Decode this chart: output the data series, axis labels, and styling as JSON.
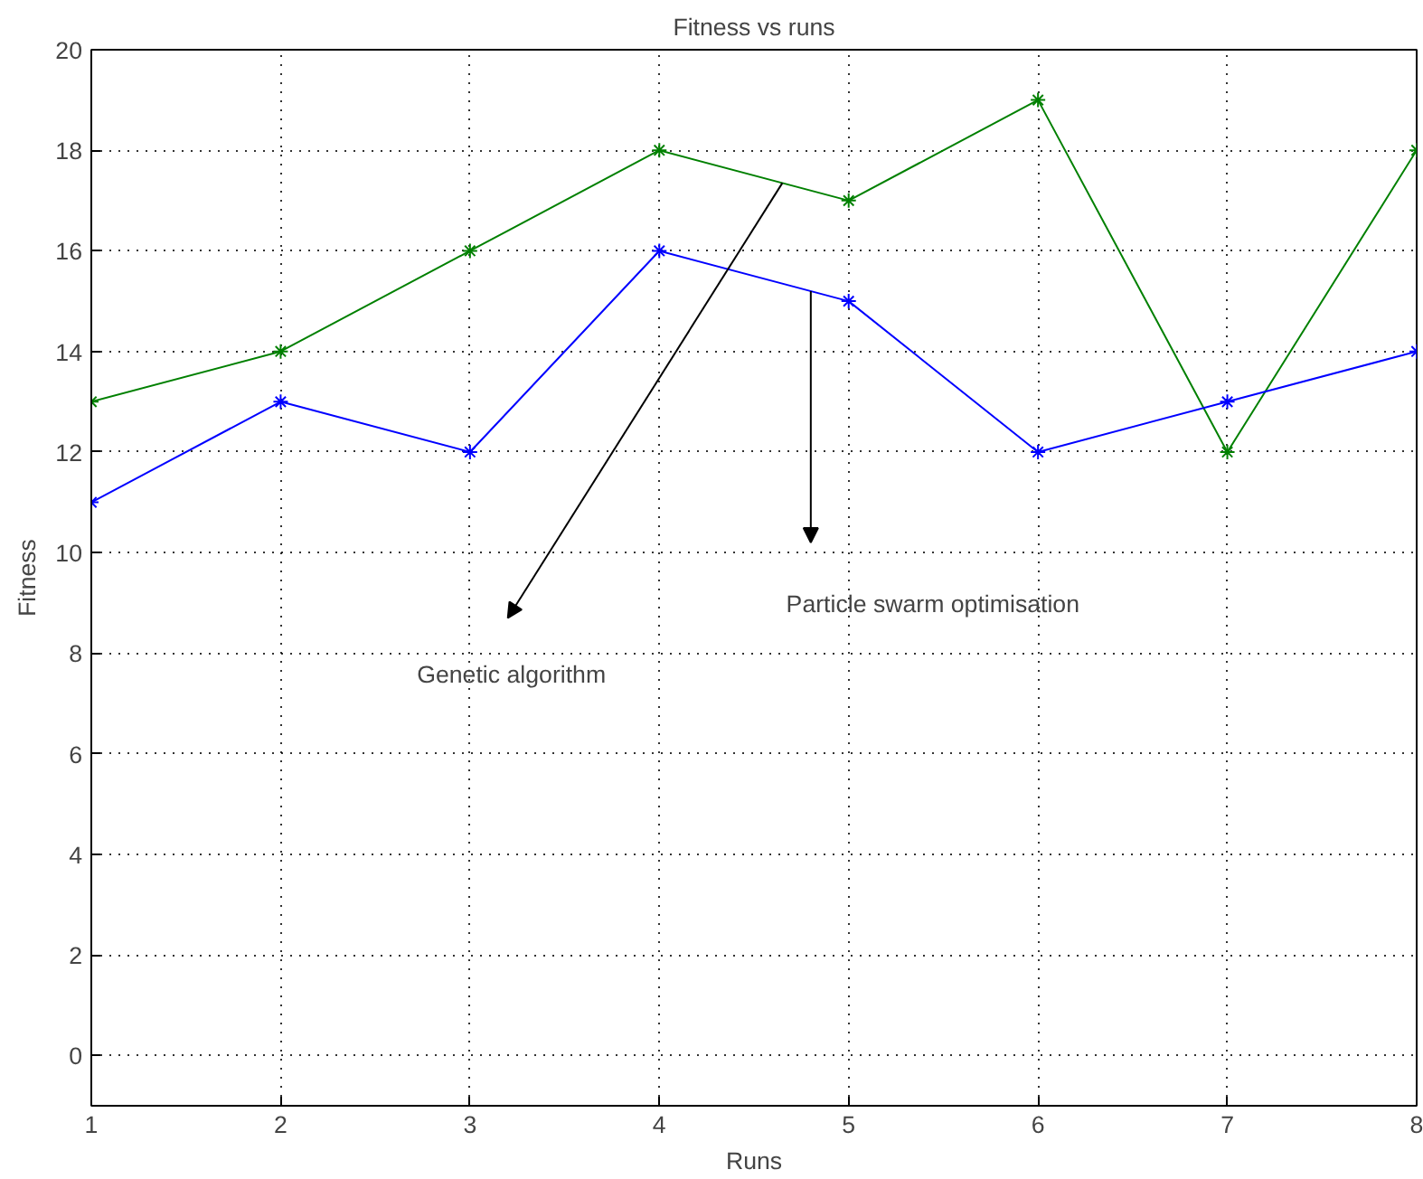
{
  "chart_data": {
    "type": "line",
    "title": "Fitness vs runs",
    "xlabel": "Runs",
    "ylabel": "Fitness",
    "x": [
      1,
      2,
      3,
      4,
      5,
      6,
      7,
      8
    ],
    "series": [
      {
        "color": "#008000",
        "values": [
          13,
          14,
          16,
          18,
          17,
          19,
          12,
          18
        ]
      },
      {
        "color": "#0000ff",
        "values": [
          11,
          13,
          12,
          16,
          15,
          12,
          13,
          14
        ]
      }
    ],
    "xlim": [
      1,
      8
    ],
    "xticks": [
      1,
      2,
      3,
      4,
      5,
      6,
      7,
      8
    ],
    "ylim": [
      -1,
      20
    ],
    "yticks": [
      0,
      2,
      4,
      6,
      8,
      10,
      12,
      14,
      16,
      18,
      20
    ],
    "grid": true,
    "marker": "cross",
    "line_style": "solid",
    "annotations": [
      "Genetic algorithm",
      "Particle swarm optimisation"
    ]
  }
}
